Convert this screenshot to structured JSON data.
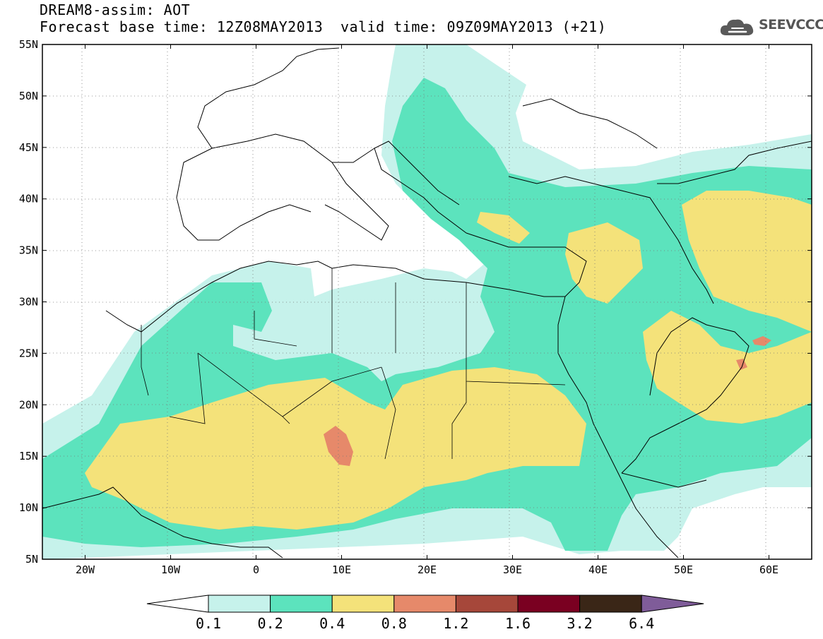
{
  "header": {
    "title": "DREAM8-assim: AOT",
    "base_time": "Forecast base time: 12Z08MAY2013",
    "valid_time": "valid time: 09Z09MAY2013 (+21)"
  },
  "logo": {
    "text": "SEEVCCC",
    "icon": "cloud-icon"
  },
  "axes": {
    "lat_labels": [
      "55N",
      "50N",
      "45N",
      "40N",
      "35N",
      "30N",
      "25N",
      "20N",
      "15N",
      "10N",
      "5N"
    ],
    "lon_labels": [
      "20W",
      "10W",
      "0",
      "10E",
      "20E",
      "30E",
      "40E",
      "50E",
      "60E"
    ],
    "lat_range": [
      5,
      55
    ],
    "lon_range": [
      -25,
      65
    ]
  },
  "colorbar": {
    "labels": [
      "0.1",
      "0.2",
      "0.4",
      "0.8",
      "1.2",
      "1.6",
      "3.2",
      "6.4"
    ],
    "colors": [
      "#ffffff",
      "#c6f2eb",
      "#5ce3bd",
      "#f4e27a",
      "#e6896a",
      "#a6473a",
      "#7a0021",
      "#3a2617",
      "#7f5c99"
    ]
  }
}
